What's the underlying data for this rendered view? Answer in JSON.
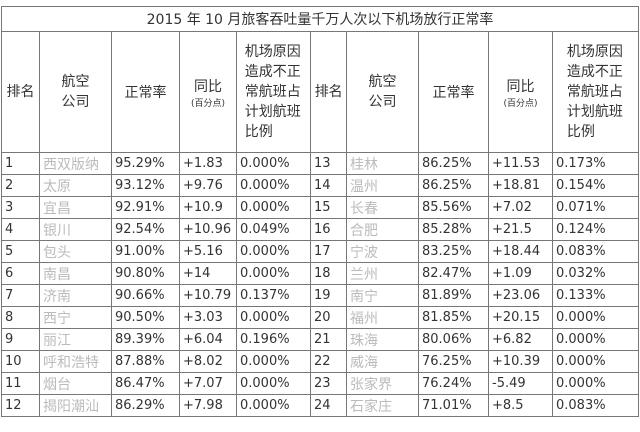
{
  "title": "2015 年 10 月旅客吞吐量千万人次以下机场放行正常率",
  "header": {
    "rank": "排名",
    "airline": "航空公司",
    "rate": "正常率",
    "yoy": "同比",
    "yoy_unit": "(百分点)",
    "ratio": "机场原因造成不正常航班占计划航班比例"
  },
  "rows": [
    [
      "1",
      "西双版纳",
      "95.29%",
      "+1.83",
      "0.000%",
      "13",
      "桂林",
      "86.25%",
      "+11.53",
      "0.173%"
    ],
    [
      "2",
      "太原",
      "93.12%",
      "+9.76",
      "0.000%",
      "14",
      "温州",
      "86.25%",
      "+18.81",
      "0.154%"
    ],
    [
      "3",
      "宜昌",
      "92.91%",
      "+10.9",
      "0.000%",
      "15",
      "长春",
      "85.56%",
      "+7.02",
      "0.071%"
    ],
    [
      "4",
      "银川",
      "92.54%",
      "+10.96",
      "0.049%",
      "16",
      "合肥",
      "85.28%",
      "+21.5",
      "0.124%"
    ],
    [
      "5",
      "包头",
      "91.00%",
      "+5.16",
      "0.000%",
      "17",
      "宁波",
      "83.25%",
      "+18.44",
      "0.083%"
    ],
    [
      "6",
      "南昌",
      "90.80%",
      "+14",
      "0.000%",
      "18",
      "兰州",
      "82.47%",
      "+1.09",
      "0.032%"
    ],
    [
      "7",
      "济南",
      "90.66%",
      "+10.79",
      "0.137%",
      "19",
      "南宁",
      "81.89%",
      "+23.06",
      "0.133%"
    ],
    [
      "8",
      "西宁",
      "90.50%",
      "+3.03",
      "0.000%",
      "20",
      "福州",
      "81.85%",
      "+20.15",
      "0.000%"
    ],
    [
      "9",
      "丽江",
      "89.39%",
      "+6.04",
      "0.196%",
      "21",
      "珠海",
      "80.06%",
      "+6.82",
      "0.000%"
    ],
    [
      "10",
      "呼和浩特",
      "87.88%",
      "+8.02",
      "0.000%",
      "22",
      "威海",
      "76.25%",
      "+10.39",
      "0.000%"
    ],
    [
      "11",
      "烟台",
      "86.47%",
      "+7.07",
      "0.000%",
      "23",
      "张家界",
      "76.24%",
      "-5.49",
      "0.000%"
    ],
    [
      "12",
      "揭阳潮汕",
      "86.29%",
      "+7.98",
      "0.000%",
      "24",
      "石家庄",
      "71.01%",
      "+8.5",
      "0.083%"
    ]
  ]
}
